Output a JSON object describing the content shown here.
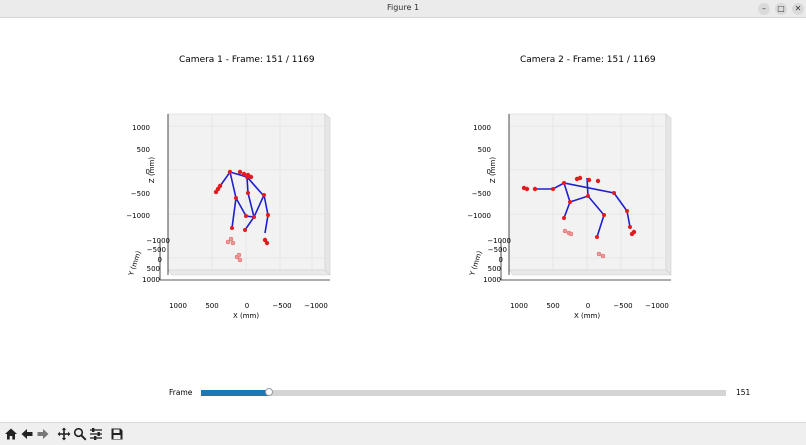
{
  "window": {
    "title": "Figure 1",
    "buttons": [
      "–",
      "□",
      "✕"
    ]
  },
  "plots": [
    {
      "title": "Camera 1 - Frame: 151 / 1169",
      "z_label": "Z (mm)",
      "y_label": "Y (mm)",
      "x_label": "X (mm)",
      "z_ticks": [
        "1000",
        "500",
        "0",
        "−500",
        "−1000"
      ],
      "y_ticks": [
        "−1000",
        "−500",
        "0",
        "500",
        "1000"
      ],
      "x_ticks": [
        "1000",
        "500",
        "0",
        "−500",
        "−1000"
      ]
    },
    {
      "title": "Camera 2 - Frame: 151 / 1169",
      "z_label": "Z (mm)",
      "y_label": "Y (mm)",
      "x_label": "X (mm)",
      "z_ticks": [
        "1000",
        "500",
        "0",
        "−500",
        "−1000"
      ],
      "y_ticks": [
        "−1000",
        "−500",
        "0",
        "500",
        "1000"
      ],
      "x_ticks": [
        "1000",
        "500",
        "0",
        "−500",
        "−1000"
      ]
    }
  ],
  "slider": {
    "label": "Frame",
    "value": "151",
    "min": 0,
    "max": 1168,
    "current": 151
  },
  "toolbar": {
    "icons": [
      "home-icon",
      "back-arrow-icon",
      "forward-arrow-icon",
      "pan-icon",
      "zoom-icon",
      "configure-subplots-icon",
      "save-icon"
    ]
  },
  "colors": {
    "bone": "#1f1fd0",
    "joint": "#e41a1c",
    "slider_fill": "#1f77b4"
  }
}
